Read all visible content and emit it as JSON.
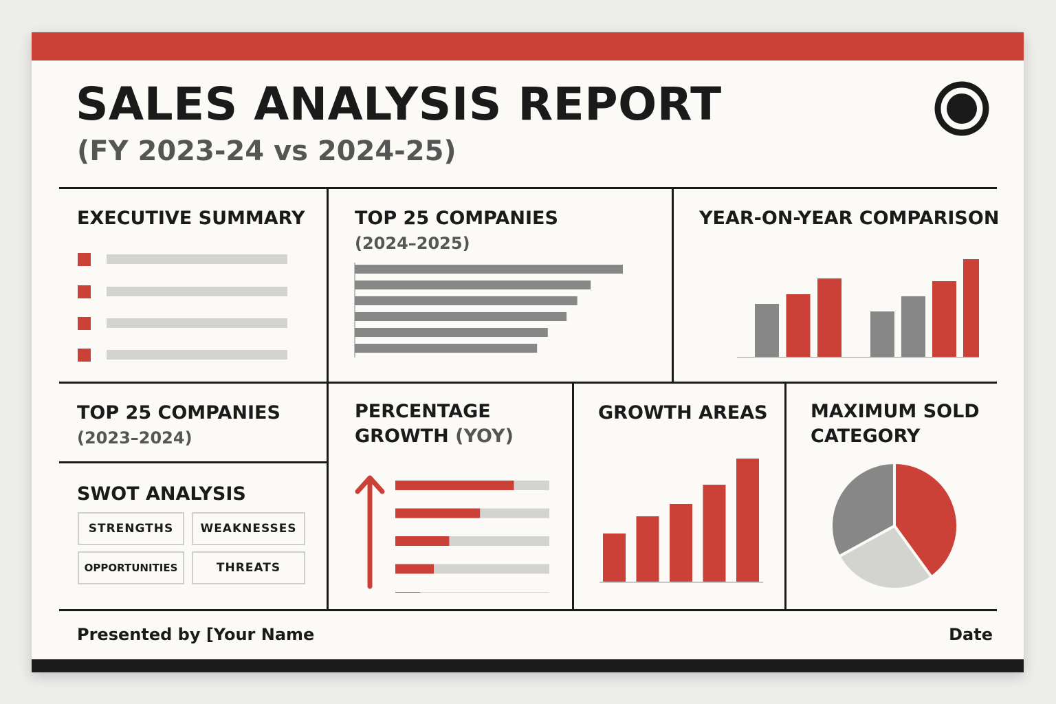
{
  "report": {
    "title": "SALES ANALYSIS REPORT",
    "subtitle": "(FY 2023-24 vs 2024-25)"
  },
  "colors": {
    "accent": "#cc4137",
    "dark": "#1c1c1c",
    "gray": "#878787",
    "light_gray": "#d3d3cf",
    "background": "#fbfaf6"
  },
  "panels": {
    "executive_summary": {
      "title": "EXECUTIVE SUMMARY",
      "bullet_count": 4
    },
    "top25_current": {
      "title": "TOP 25 COMPANIES",
      "subtitle": "(2024–2025)"
    },
    "yoy": {
      "title": "YEAR-ON-YEAR COMPARISON"
    },
    "top25_previous": {
      "title": "TOP 25 COMPANIES",
      "subtitle": "(2023–2024)"
    },
    "swot": {
      "title": "SWOT ANALYSIS",
      "strengths": "STRENGTHS",
      "weaknesses": "WEAKNESSES",
      "opportunities": "OPPORTUNITIES",
      "threats": "THREATS"
    },
    "percentage_growth": {
      "title_line1": "PERCENTAGE",
      "title_line2": "GROWTH",
      "title_suffix": "(YOY)",
      "icon": "up-arrow-icon"
    },
    "growth_areas": {
      "title": "GROWTH AREAS"
    },
    "max_sold": {
      "title_line1": "MAXIMUM SOLD",
      "title_line2": "CATEGORY"
    }
  },
  "chart_data": [
    {
      "type": "bar",
      "orientation": "horizontal",
      "panel": "top25_current",
      "values": [
        100,
        88,
        83,
        79,
        72,
        68
      ],
      "color": "#878787"
    },
    {
      "type": "bar",
      "panel": "yoy",
      "groups": [
        {
          "values": [
            77,
            91,
            114
          ],
          "colors": [
            "#878787",
            "#cc4137",
            "#cc4137"
          ]
        },
        {
          "values": [
            66,
            88,
            110,
            142
          ],
          "colors": [
            "#878787",
            "#878787",
            "#cc4137",
            "#cc4137"
          ]
        }
      ]
    },
    {
      "type": "bar",
      "orientation": "horizontal",
      "panel": "percentage_growth",
      "values": [
        77,
        55,
        35,
        25,
        16
      ],
      "max": 100,
      "color": "#cc4137",
      "track_color": "#d3d3cf"
    },
    {
      "type": "bar",
      "panel": "growth_areas",
      "values": [
        70,
        95,
        113,
        141,
        179
      ],
      "color": "#cc4137"
    },
    {
      "type": "pie",
      "panel": "max_sold",
      "values": [
        40,
        27,
        33
      ],
      "colors": [
        "#cc4137",
        "#d3d3cf",
        "#878787"
      ]
    }
  ],
  "footer": {
    "presented_by": "Presented by  [Your Name",
    "date": "Date"
  }
}
